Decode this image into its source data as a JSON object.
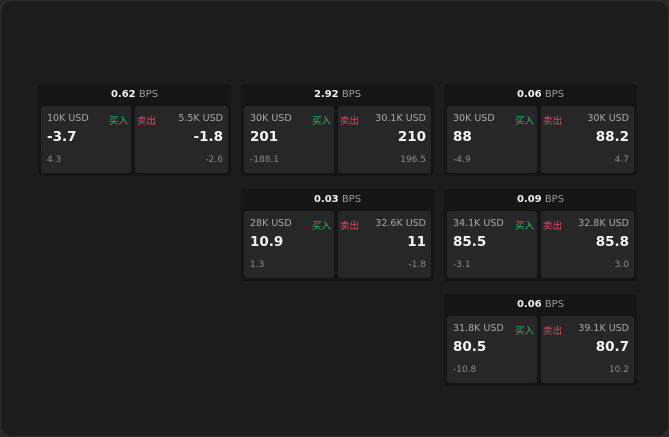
{
  "unit": "BPS",
  "buy_label": "买入",
  "sell_label": "卖出",
  "colors": {
    "buy": "#2fb36b",
    "sell": "#e0456e",
    "background": "#1c1c1c",
    "panel": "#272727"
  },
  "cards": [
    {
      "bps": "0.62",
      "buy": {
        "size": "10K USD",
        "price": "-3.7",
        "change": "4.3"
      },
      "sell": {
        "size": "5.5K USD",
        "price": "-1.8",
        "change": "-2.6"
      }
    },
    {
      "bps": "2.92",
      "buy": {
        "size": "30K USD",
        "price": "201",
        "change": "-188.1"
      },
      "sell": {
        "size": "30.1K USD",
        "price": "210",
        "change": "196.5"
      }
    },
    {
      "bps": "0.06",
      "buy": {
        "size": "30K USD",
        "price": "88",
        "change": "-4.9"
      },
      "sell": {
        "size": "30K USD",
        "price": "88.2",
        "change": "4.7"
      }
    },
    {
      "bps": "0.03",
      "buy": {
        "size": "28K USD",
        "price": "10.9",
        "change": "1.3"
      },
      "sell": {
        "size": "32.6K USD",
        "price": "11",
        "change": "-1.8"
      }
    },
    {
      "bps": "0.09",
      "buy": {
        "size": "34.1K USD",
        "price": "85.5",
        "change": "-3.1"
      },
      "sell": {
        "size": "32.8K USD",
        "price": "85.8",
        "change": "3.0"
      }
    },
    {
      "bps": "0.06",
      "buy": {
        "size": "31.8K USD",
        "price": "80.5",
        "change": "-10.8"
      },
      "sell": {
        "size": "39.1K USD",
        "price": "80.7",
        "change": "10.2"
      }
    }
  ]
}
